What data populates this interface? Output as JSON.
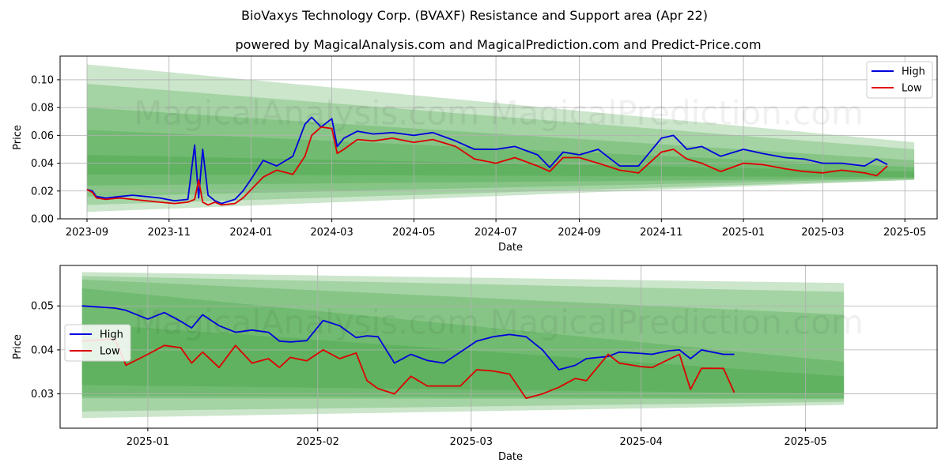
{
  "title": "BioVaxys Technology Corp. (BVAXF) Resistance and Support area (Apr 22)",
  "subtitle": "powered by MagicalAnalysis.com and MagicalPrediction.com and Predict-Price.com",
  "watermark": "MagicalAnalysis.com    MagicalPrediction.com",
  "colors": {
    "high": "#0000dd",
    "low": "#dd0000",
    "band": "#2e9a2e",
    "grid": "#b0b0b0"
  },
  "chart_data": [
    {
      "type": "line",
      "xlabel": "Date",
      "ylabel": "Price",
      "xlim": [
        "2023-08-12",
        "2025-05-25"
      ],
      "ylim": [
        0,
        0.117
      ],
      "x_ticks": [
        "2023-09",
        "2023-11",
        "2024-01",
        "2024-03",
        "2024-05",
        "2024-07",
        "2024-09",
        "2024-11",
        "2025-01",
        "2025-03",
        "2025-05"
      ],
      "y_ticks": [
        "0.00",
        "0.02",
        "0.04",
        "0.06",
        "0.08",
        "0.10"
      ],
      "grid": true,
      "legend": "top-right",
      "band_range": [
        "2023-09-01",
        "2025-05-08"
      ],
      "bands": [
        {
          "start": [
            0.032,
            0.046
          ],
          "end": [
            0.03,
            0.034
          ]
        },
        {
          "start": [
            0.024,
            0.064
          ],
          "end": [
            0.029,
            0.037
          ]
        },
        {
          "start": [
            0.016,
            0.08
          ],
          "end": [
            0.029,
            0.042
          ]
        },
        {
          "start": [
            0.01,
            0.097
          ],
          "end": [
            0.028,
            0.05
          ]
        },
        {
          "start": [
            0.005,
            0.111
          ],
          "end": [
            0.028,
            0.055
          ]
        }
      ],
      "series": [
        {
          "name": "High",
          "color": "#0000dd",
          "x": [
            "2023-09-01",
            "2023-09-05",
            "2023-09-08",
            "2023-09-15",
            "2023-09-25",
            "2023-10-05",
            "2023-10-15",
            "2023-10-25",
            "2023-11-05",
            "2023-11-15",
            "2023-11-20",
            "2023-11-23",
            "2023-11-26",
            "2023-11-30",
            "2023-12-05",
            "2023-12-10",
            "2023-12-20",
            "2023-12-26",
            "2024-01-02",
            "2024-01-10",
            "2024-01-20",
            "2024-02-01",
            "2024-02-10",
            "2024-02-15",
            "2024-02-22",
            "2024-03-01",
            "2024-03-05",
            "2024-03-10",
            "2024-03-20",
            "2024-04-01",
            "2024-04-15",
            "2024-05-01",
            "2024-05-15",
            "2024-06-01",
            "2024-06-15",
            "2024-07-01",
            "2024-07-15",
            "2024-08-01",
            "2024-08-10",
            "2024-08-20",
            "2024-09-01",
            "2024-09-15",
            "2024-10-01",
            "2024-10-15",
            "2024-11-01",
            "2024-11-10",
            "2024-11-20",
            "2024-12-01",
            "2024-12-15",
            "2025-01-01",
            "2025-01-15",
            "2025-02-01",
            "2025-02-15",
            "2025-03-01",
            "2025-03-15",
            "2025-04-01",
            "2025-04-10",
            "2025-04-18"
          ],
          "values": [
            0.021,
            0.02,
            0.016,
            0.015,
            0.016,
            0.017,
            0.016,
            0.015,
            0.013,
            0.014,
            0.053,
            0.015,
            0.05,
            0.017,
            0.013,
            0.011,
            0.014,
            0.02,
            0.03,
            0.042,
            0.038,
            0.045,
            0.068,
            0.073,
            0.066,
            0.072,
            0.052,
            0.058,
            0.063,
            0.061,
            0.062,
            0.06,
            0.062,
            0.056,
            0.05,
            0.05,
            0.052,
            0.046,
            0.037,
            0.048,
            0.046,
            0.05,
            0.038,
            0.038,
            0.058,
            0.06,
            0.05,
            0.052,
            0.045,
            0.05,
            0.047,
            0.044,
            0.043,
            0.04,
            0.04,
            0.038,
            0.043,
            0.039
          ]
        },
        {
          "name": "Low",
          "color": "#dd0000",
          "x": [
            "2023-09-01",
            "2023-09-05",
            "2023-09-08",
            "2023-09-15",
            "2023-09-25",
            "2023-10-05",
            "2023-10-15",
            "2023-10-25",
            "2023-11-05",
            "2023-11-15",
            "2023-11-20",
            "2023-11-23",
            "2023-11-26",
            "2023-11-30",
            "2023-12-05",
            "2023-12-10",
            "2023-12-20",
            "2023-12-26",
            "2024-01-02",
            "2024-01-10",
            "2024-01-20",
            "2024-02-01",
            "2024-02-10",
            "2024-02-15",
            "2024-02-22",
            "2024-03-01",
            "2024-03-05",
            "2024-03-10",
            "2024-03-20",
            "2024-04-01",
            "2024-04-15",
            "2024-05-01",
            "2024-05-15",
            "2024-06-01",
            "2024-06-15",
            "2024-07-01",
            "2024-07-15",
            "2024-08-01",
            "2024-08-10",
            "2024-08-20",
            "2024-09-01",
            "2024-09-15",
            "2024-10-01",
            "2024-10-15",
            "2024-11-01",
            "2024-11-10",
            "2024-11-20",
            "2024-12-01",
            "2024-12-15",
            "2025-01-01",
            "2025-01-15",
            "2025-02-01",
            "2025-02-15",
            "2025-03-01",
            "2025-03-15",
            "2025-04-01",
            "2025-04-10",
            "2025-04-18"
          ],
          "values": [
            0.021,
            0.019,
            0.015,
            0.014,
            0.015,
            0.014,
            0.013,
            0.012,
            0.011,
            0.012,
            0.014,
            0.028,
            0.012,
            0.01,
            0.012,
            0.01,
            0.011,
            0.015,
            0.022,
            0.03,
            0.035,
            0.032,
            0.045,
            0.06,
            0.066,
            0.065,
            0.047,
            0.05,
            0.057,
            0.056,
            0.058,
            0.055,
            0.057,
            0.052,
            0.043,
            0.04,
            0.044,
            0.038,
            0.034,
            0.044,
            0.044,
            0.04,
            0.035,
            0.033,
            0.048,
            0.05,
            0.043,
            0.04,
            0.034,
            0.04,
            0.039,
            0.036,
            0.034,
            0.033,
            0.035,
            0.033,
            0.031,
            0.038
          ]
        }
      ]
    },
    {
      "type": "line",
      "xlabel": "Date",
      "ylabel": "Price",
      "xlim": [
        "2024-12-16",
        "2025-05-25"
      ],
      "ylim": [
        0.0222,
        0.0592
      ],
      "x_ticks": [
        "2025-01",
        "2025-02",
        "2025-03",
        "2025-04",
        "2025-05"
      ],
      "y_ticks": [
        "0.03",
        "0.04",
        "0.05"
      ],
      "grid": true,
      "legend": "center-left",
      "band_range": [
        "2024-12-20",
        "2025-05-08"
      ],
      "bands": [
        {
          "start": [
            0.032,
            0.046
          ],
          "end": [
            0.03,
            0.034
          ]
        },
        {
          "start": [
            0.0295,
            0.054
          ],
          "end": [
            0.029,
            0.0373
          ]
        },
        {
          "start": [
            0.029,
            0.056
          ],
          "end": [
            0.0288,
            0.048
          ]
        },
        {
          "start": [
            0.026,
            0.0568
          ],
          "end": [
            0.0282,
            0.0532
          ]
        },
        {
          "start": [
            0.0245,
            0.0577
          ],
          "end": [
            0.0275,
            0.0552
          ]
        }
      ],
      "series": [
        {
          "name": "High",
          "color": "#0000dd",
          "x": [
            "2024-12-20",
            "2024-12-26",
            "2024-12-28",
            "2025-01-01",
            "2025-01-04",
            "2025-01-07",
            "2025-01-09",
            "2025-01-11",
            "2025-01-14",
            "2025-01-17",
            "2025-01-20",
            "2025-01-23",
            "2025-01-25",
            "2025-01-27",
            "2025-01-30",
            "2025-02-02",
            "2025-02-05",
            "2025-02-08",
            "2025-02-10",
            "2025-02-12",
            "2025-02-15",
            "2025-02-18",
            "2025-02-21",
            "2025-02-24",
            "2025-02-27",
            "2025-03-02",
            "2025-03-05",
            "2025-03-08",
            "2025-03-11",
            "2025-03-14",
            "2025-03-17",
            "2025-03-20",
            "2025-03-22",
            "2025-03-26",
            "2025-03-28",
            "2025-04-01",
            "2025-04-03",
            "2025-04-06",
            "2025-04-08",
            "2025-04-10",
            "2025-04-12",
            "2025-04-16",
            "2025-04-18"
          ],
          "values": [
            0.05,
            0.0495,
            0.049,
            0.047,
            0.0485,
            0.0465,
            0.045,
            0.048,
            0.0455,
            0.044,
            0.0445,
            0.044,
            0.042,
            0.0418,
            0.0421,
            0.0467,
            0.0455,
            0.0428,
            0.0432,
            0.043,
            0.037,
            0.039,
            0.0376,
            0.037,
            0.0395,
            0.042,
            0.043,
            0.0435,
            0.043,
            0.04,
            0.0355,
            0.0365,
            0.038,
            0.0385,
            0.0395,
            0.0392,
            0.039,
            0.0398,
            0.04,
            0.038,
            0.04,
            0.039,
            0.039
          ]
        },
        {
          "name": "Low",
          "color": "#dd0000",
          "x": [
            "2024-12-20",
            "2024-12-26",
            "2024-12-28",
            "2025-01-01",
            "2025-01-04",
            "2025-01-07",
            "2025-01-09",
            "2025-01-11",
            "2025-01-14",
            "2025-01-17",
            "2025-01-20",
            "2025-01-23",
            "2025-01-25",
            "2025-01-27",
            "2025-01-30",
            "2025-02-02",
            "2025-02-05",
            "2025-02-08",
            "2025-02-10",
            "2025-02-12",
            "2025-02-15",
            "2025-02-18",
            "2025-02-21",
            "2025-02-24",
            "2025-02-27",
            "2025-03-02",
            "2025-03-05",
            "2025-03-08",
            "2025-03-11",
            "2025-03-14",
            "2025-03-17",
            "2025-03-20",
            "2025-03-22",
            "2025-03-26",
            "2025-03-28",
            "2025-04-01",
            "2025-04-03",
            "2025-04-06",
            "2025-04-08",
            "2025-04-10",
            "2025-04-12",
            "2025-04-16",
            "2025-04-18"
          ],
          "values": [
            0.042,
            0.0425,
            0.0365,
            0.039,
            0.041,
            0.0405,
            0.037,
            0.0395,
            0.036,
            0.041,
            0.037,
            0.038,
            0.036,
            0.0383,
            0.0375,
            0.04,
            0.038,
            0.0393,
            0.033,
            0.0312,
            0.03,
            0.034,
            0.0318,
            0.0318,
            0.0318,
            0.0355,
            0.0352,
            0.0345,
            0.029,
            0.03,
            0.0315,
            0.0335,
            0.033,
            0.039,
            0.037,
            0.0362,
            0.036,
            0.0378,
            0.039,
            0.031,
            0.0358,
            0.0358,
            0.0303
          ]
        }
      ]
    }
  ]
}
